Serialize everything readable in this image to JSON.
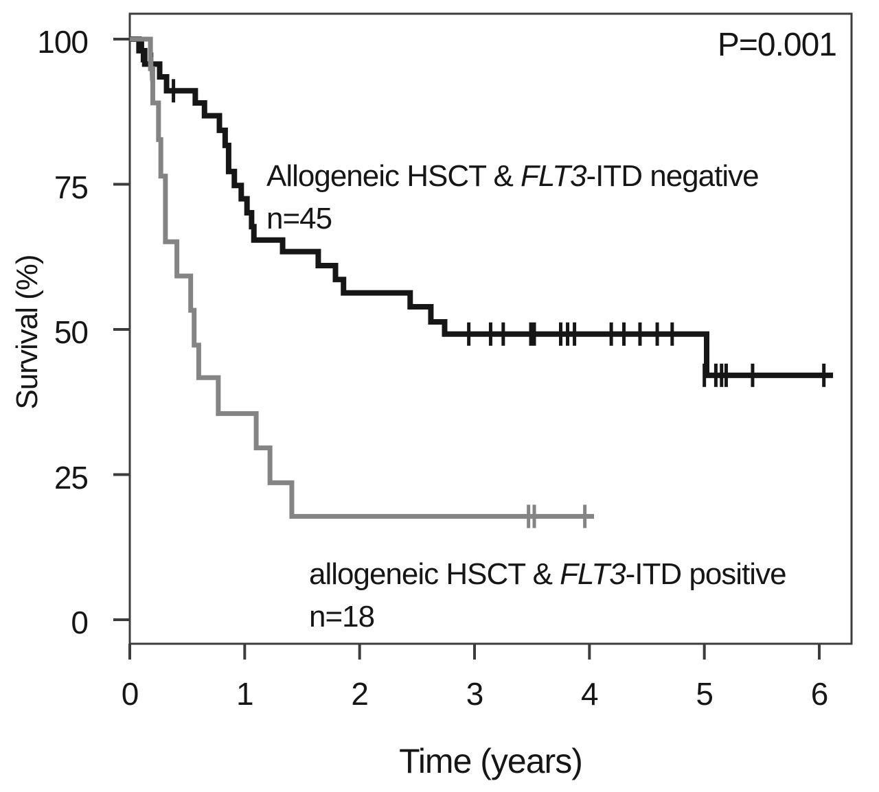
{
  "figure": {
    "frame_color": "#3c3c3c",
    "background": "#ffffff",
    "text_color": "#161616"
  },
  "chart_data": {
    "type": "line",
    "subtype": "kaplan-meier-step",
    "title": "",
    "xlabel": "Time (years)",
    "ylabel": "Survival (%)",
    "p_value": "P=0.001",
    "xlim": [
      0,
      6.28
    ],
    "ylim": [
      0,
      104
    ],
    "x_ticks": [
      0,
      1,
      2,
      3,
      4,
      5,
      6
    ],
    "y_ticks": [
      0,
      25,
      50,
      75,
      100
    ],
    "grid": false,
    "legend_position": "inline-annotations",
    "series": [
      {
        "name": "allogeneic-hsct-flt3-itd-negative",
        "label_prefix": "Allogeneic HSCT & ",
        "label_italic": "FLT3",
        "label_suffix": "-ITD negative",
        "n_label": "n=45",
        "color": "#161616",
        "line_width": 8,
        "points": [
          [
            0,
            100
          ],
          [
            0.08,
            100
          ],
          [
            0.08,
            98.0
          ],
          [
            0.13,
            98.0
          ],
          [
            0.13,
            95.7
          ],
          [
            0.26,
            95.7
          ],
          [
            0.26,
            93.5
          ],
          [
            0.32,
            93.5
          ],
          [
            0.32,
            91.1
          ],
          [
            0.57,
            91.1
          ],
          [
            0.57,
            89.0
          ],
          [
            0.65,
            89.0
          ],
          [
            0.65,
            86.8
          ],
          [
            0.78,
            86.8
          ],
          [
            0.78,
            84.3
          ],
          [
            0.83,
            84.3
          ],
          [
            0.83,
            81.7
          ],
          [
            0.86,
            81.7
          ],
          [
            0.86,
            77.2
          ],
          [
            0.91,
            77.2
          ],
          [
            0.91,
            74.8
          ],
          [
            0.97,
            74.8
          ],
          [
            0.97,
            72.5
          ],
          [
            1.02,
            72.5
          ],
          [
            1.02,
            70.1
          ],
          [
            1.06,
            70.1
          ],
          [
            1.06,
            67.7
          ],
          [
            1.08,
            67.7
          ],
          [
            1.08,
            65.4
          ],
          [
            1.33,
            65.4
          ],
          [
            1.33,
            63.4
          ],
          [
            1.64,
            63.4
          ],
          [
            1.64,
            61.0
          ],
          [
            1.79,
            61.0
          ],
          [
            1.79,
            58.6
          ],
          [
            1.86,
            58.6
          ],
          [
            1.86,
            56.3
          ],
          [
            2.44,
            56.3
          ],
          [
            2.44,
            53.9
          ],
          [
            2.62,
            53.9
          ],
          [
            2.62,
            51.3
          ],
          [
            2.74,
            51.3
          ],
          [
            2.74,
            49.2
          ],
          [
            5.02,
            49.2
          ],
          [
            5.02,
            42.1
          ],
          [
            6.12,
            42.1
          ]
        ],
        "censors": [
          [
            0.11,
            98.0
          ],
          [
            0.19,
            95.7
          ],
          [
            0.38,
            91.1
          ],
          [
            2.95,
            49.2
          ],
          [
            3.14,
            49.2
          ],
          [
            3.25,
            49.2
          ],
          [
            3.49,
            49.2
          ],
          [
            3.52,
            49.2
          ],
          [
            3.75,
            49.2
          ],
          [
            3.81,
            49.2
          ],
          [
            3.87,
            49.2
          ],
          [
            4.19,
            49.2
          ],
          [
            4.3,
            49.2
          ],
          [
            4.44,
            49.2
          ],
          [
            4.59,
            49.2
          ],
          [
            4.72,
            49.2
          ],
          [
            5.0,
            42.1
          ],
          [
            5.1,
            42.1
          ],
          [
            5.15,
            42.1
          ],
          [
            5.19,
            42.1
          ],
          [
            5.42,
            42.1
          ],
          [
            6.04,
            42.1
          ]
        ]
      },
      {
        "name": "allogeneic-hsct-flt3-itd-positive",
        "label_prefix": "allogeneic HSCT & ",
        "label_italic": "FLT3",
        "label_suffix": "-ITD positive",
        "n_label": "n=18",
        "color": "#848484",
        "line_width": 7,
        "points": [
          [
            0,
            100
          ],
          [
            0.18,
            100
          ],
          [
            0.18,
            94.9
          ],
          [
            0.2,
            94.9
          ],
          [
            0.2,
            89.0
          ],
          [
            0.25,
            89.0
          ],
          [
            0.25,
            82.7
          ],
          [
            0.27,
            82.7
          ],
          [
            0.27,
            76.4
          ],
          [
            0.31,
            76.4
          ],
          [
            0.31,
            65.1
          ],
          [
            0.41,
            65.1
          ],
          [
            0.41,
            59.2
          ],
          [
            0.53,
            59.2
          ],
          [
            0.53,
            53.3
          ],
          [
            0.56,
            53.3
          ],
          [
            0.56,
            47.3
          ],
          [
            0.6,
            47.3
          ],
          [
            0.6,
            41.7
          ],
          [
            0.77,
            41.7
          ],
          [
            0.77,
            35.5
          ],
          [
            1.1,
            35.5
          ],
          [
            1.1,
            29.6
          ],
          [
            1.22,
            29.6
          ],
          [
            1.22,
            23.6
          ],
          [
            1.41,
            23.6
          ],
          [
            1.41,
            17.8
          ],
          [
            4.04,
            17.8
          ]
        ],
        "censors": [
          [
            0.19,
            94.9
          ],
          [
            3.47,
            17.8
          ],
          [
            3.52,
            17.8
          ],
          [
            3.96,
            17.8
          ]
        ]
      }
    ]
  }
}
